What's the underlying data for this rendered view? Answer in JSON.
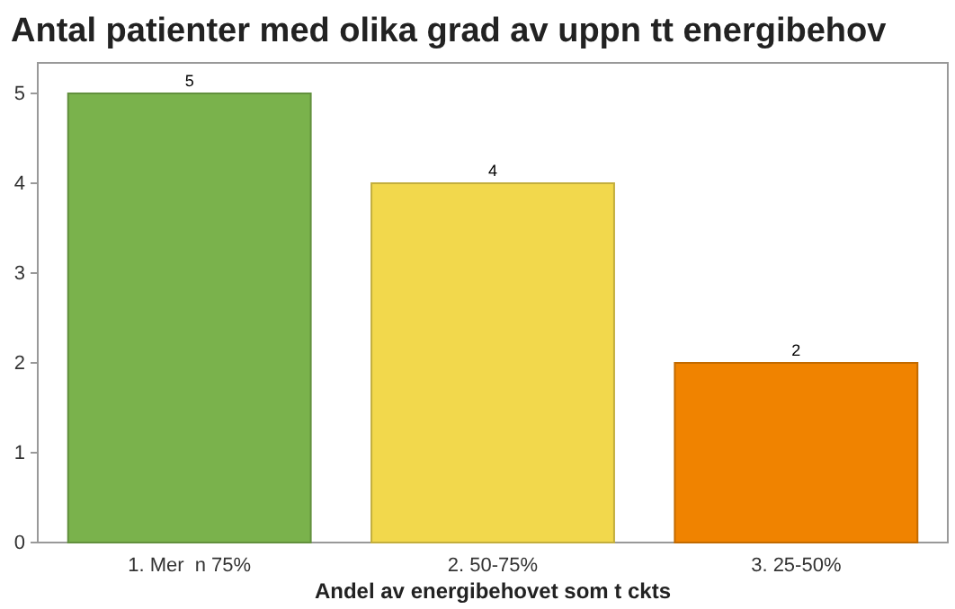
{
  "chart_data": {
    "type": "bar",
    "title": "Antal patienter med olika grad av uppn tt energibehov",
    "xlabel": "Andel av energibehovet som t ckts",
    "categories": [
      "1. Mer  n 75%",
      "2. 50-75%",
      "3. 25-50%"
    ],
    "values": [
      5,
      4,
      2
    ],
    "colors": [
      "#7ab24c",
      "#f2d84c",
      "#f08300"
    ],
    "ylim": [
      0,
      5.34
    ],
    "yticks": [
      0,
      1,
      2,
      3,
      4,
      5
    ],
    "grid": false,
    "data_labels": true
  }
}
